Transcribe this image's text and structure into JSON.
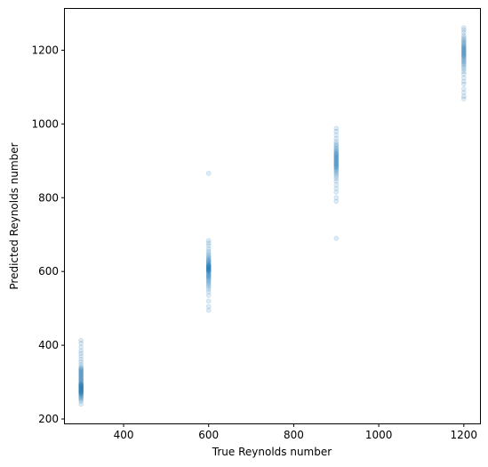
{
  "chart_data": {
    "type": "scatter",
    "title": "",
    "xlabel": "True Reynolds number",
    "ylabel": "Predicted Reynolds number",
    "xlim": [
      262,
      1238
    ],
    "ylim": [
      188,
      1312
    ],
    "xticks": [
      400,
      600,
      800,
      1000,
      1200
    ],
    "yticks": [
      200,
      400,
      600,
      800,
      1000,
      1200
    ],
    "grid": false,
    "legend": "none",
    "marker_color": "#1f77b4",
    "marker_alpha": 0.15,
    "series": [
      {
        "x": 300,
        "y": [
          240,
          248,
          252,
          255,
          258,
          260,
          262,
          264,
          266,
          268,
          269,
          270,
          271,
          272,
          273,
          274,
          275,
          276,
          277,
          278,
          279,
          280,
          281,
          282,
          283,
          284,
          285,
          286,
          287,
          288,
          289,
          290,
          291,
          292,
          293,
          294,
          295,
          296,
          298,
          300,
          302,
          304,
          306,
          308,
          310,
          312,
          314,
          316,
          318,
          320,
          322,
          324,
          326,
          328,
          330,
          332,
          334,
          336,
          338,
          342,
          348,
          355,
          362,
          370,
          378,
          385,
          395,
          405,
          413
        ]
      },
      {
        "x": 600,
        "y": [
          495,
          505,
          520,
          535,
          545,
          552,
          558,
          562,
          566,
          570,
          573,
          576,
          579,
          582,
          584,
          586,
          588,
          590,
          592,
          594,
          596,
          598,
          600,
          601,
          602,
          603,
          604,
          605,
          606,
          607,
          608,
          609,
          610,
          611,
          612,
          613,
          614,
          615,
          616,
          617,
          618,
          620,
          622,
          624,
          626,
          628,
          630,
          632,
          635,
          638,
          641,
          645,
          650,
          655,
          662,
          670,
          677,
          684,
          866
        ]
      },
      {
        "x": 900,
        "y": [
          690,
          790,
          800,
          815,
          825,
          835,
          845,
          852,
          858,
          863,
          867,
          871,
          874,
          877,
          880,
          882,
          884,
          886,
          888,
          890,
          892,
          894,
          896,
          898,
          900,
          902,
          904,
          906,
          908,
          910,
          912,
          914,
          916,
          918,
          920,
          922,
          925,
          928,
          931,
          934,
          938,
          942,
          946,
          952,
          960,
          970,
          980,
          988
        ]
      },
      {
        "x": 1200,
        "y": [
          1068,
          1075,
          1085,
          1095,
          1108,
          1115,
          1125,
          1135,
          1142,
          1148,
          1153,
          1158,
          1162,
          1165,
          1168,
          1171,
          1174,
          1177,
          1180,
          1182,
          1184,
          1186,
          1188,
          1190,
          1192,
          1194,
          1196,
          1198,
          1200,
          1202,
          1204,
          1206,
          1208,
          1210,
          1212,
          1215,
          1218,
          1221,
          1224,
          1227,
          1230,
          1235,
          1240,
          1248,
          1255,
          1261
        ]
      }
    ]
  }
}
